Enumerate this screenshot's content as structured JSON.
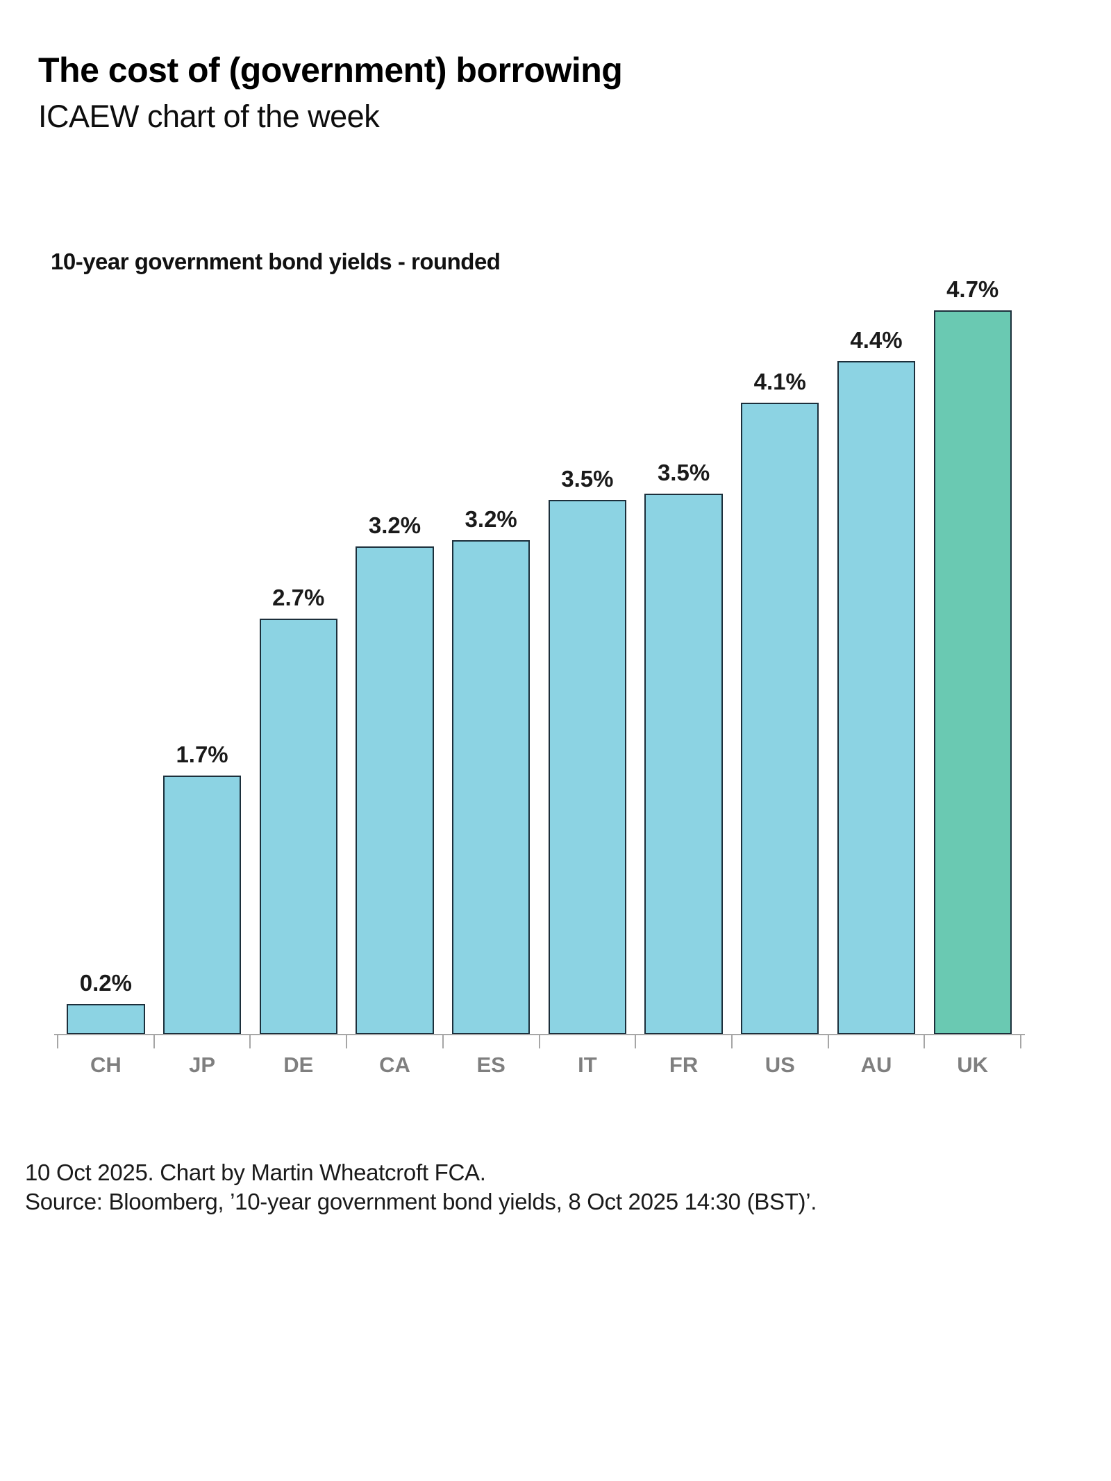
{
  "header": {
    "title": "The cost of (government) borrowing",
    "subtitle": "ICAEW chart of the week"
  },
  "chart_data": {
    "type": "bar",
    "title": "10-year government bond yields - rounded",
    "categories": [
      "CH",
      "JP",
      "DE",
      "CA",
      "ES",
      "IT",
      "FR",
      "US",
      "AU",
      "UK"
    ],
    "values": [
      0.2,
      1.7,
      2.7,
      3.2,
      3.2,
      3.5,
      3.5,
      4.1,
      4.4,
      4.7
    ],
    "value_labels": [
      "0.2%",
      "1.7%",
      "2.7%",
      "3.2%",
      "3.2%",
      "3.5%",
      "3.5%",
      "4.1%",
      "4.4%",
      "4.7%"
    ],
    "values_precise_estimate": [
      0.2,
      1.68,
      2.7,
      3.17,
      3.21,
      3.47,
      3.51,
      4.1,
      4.37,
      4.7
    ],
    "ylim": [
      0,
      4.7
    ],
    "xlabel": "",
    "ylabel": "",
    "grid": false,
    "legend": false,
    "highlight_category": "UK",
    "highlight_index": 9,
    "colors": {
      "bar_fill": "#8CD3E3",
      "bar_highlight_fill": "#6AC9B2",
      "bar_border": "#1C2F3B",
      "axis": "#A6A6A6",
      "category_label": "#7F7F7F",
      "value_label": "#1A1A1A"
    }
  },
  "footer": {
    "line1": "10 Oct 2025. Chart by Martin Wheatcroft FCA.",
    "line2": "Source: Bloomberg, ’10-year government bond yields, 8 Oct 2025 14:30 (BST)’."
  }
}
